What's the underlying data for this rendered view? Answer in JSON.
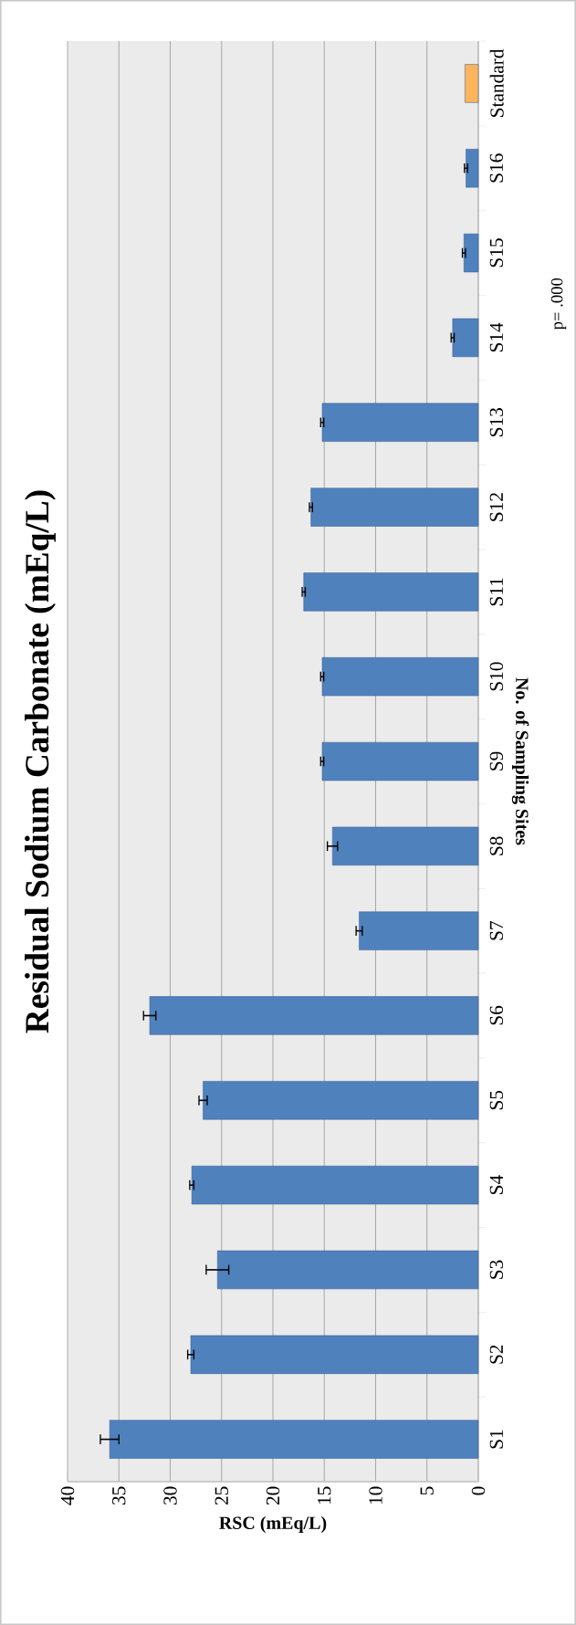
{
  "chart_data": {
    "type": "bar",
    "orientation": "horizontal",
    "title": "Residual Sodium Carbonate (mEq/L)",
    "ylabel": "No. of Sampling Sites",
    "xlabel": "RSC (mEq/L)",
    "categories": [
      "Standard",
      "S16",
      "S15",
      "S14",
      "S13",
      "S12",
      "S11",
      "S10",
      "S9",
      "S8",
      "S7",
      "S6",
      "S5",
      "S4",
      "S3",
      "S2",
      "S1"
    ],
    "values": [
      1.3,
      1.2,
      1.4,
      2.5,
      15.2,
      16.3,
      17.0,
      15.2,
      15.2,
      14.2,
      11.6,
      32.0,
      26.8,
      27.9,
      25.4,
      28.0,
      35.9
    ],
    "errors": [
      null,
      0.15,
      0.15,
      0.15,
      0.15,
      0.15,
      0.15,
      0.15,
      0.15,
      0.5,
      0.3,
      0.6,
      0.4,
      0.2,
      1.1,
      0.3,
      0.9
    ],
    "colors": [
      "#fbb55c",
      "#4f81bd",
      "#4f81bd",
      "#4f81bd",
      "#4f81bd",
      "#4f81bd",
      "#4f81bd",
      "#4f81bd",
      "#4f81bd",
      "#4f81bd",
      "#4f81bd",
      "#4f81bd",
      "#4f81bd",
      "#4f81bd",
      "#4f81bd",
      "#4f81bd",
      "#4f81bd"
    ],
    "xlim": [
      40,
      0
    ],
    "xticks": [
      0,
      5,
      10,
      15,
      20,
      25,
      30,
      35,
      40
    ],
    "grid": "x",
    "annotations": [
      "p= .000"
    ]
  }
}
